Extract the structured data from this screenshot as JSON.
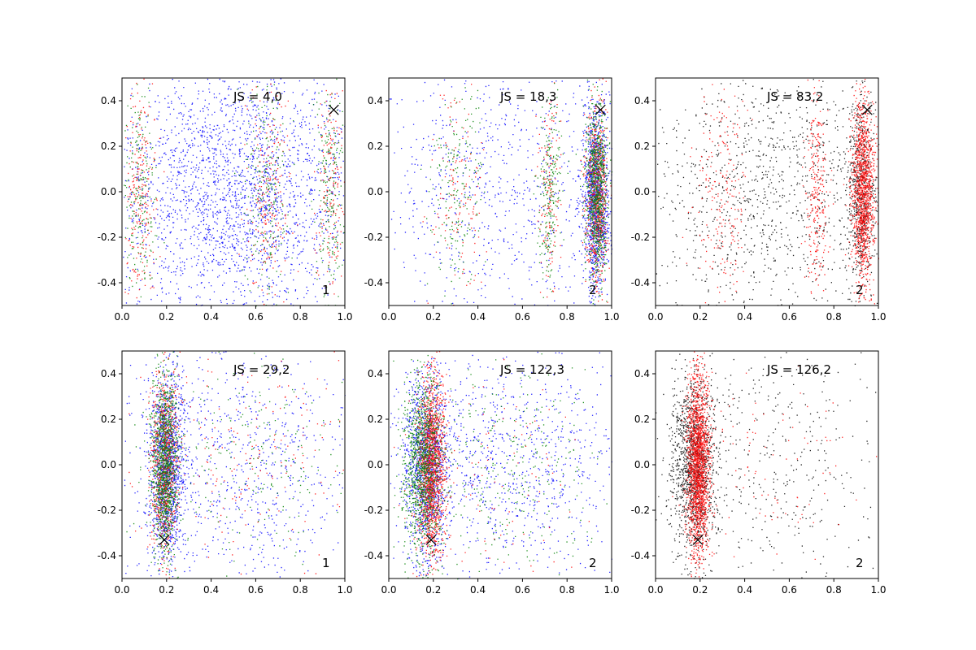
{
  "figure": {
    "background": "#ffffff"
  },
  "chart_data": [
    {
      "type": "scatter",
      "js_label": "JS = 4,0",
      "corner_label": "1",
      "xlim": [
        0.0,
        1.0
      ],
      "ylim": [
        -0.5,
        0.5
      ],
      "x_ticks": [
        "0.0",
        "0.2",
        "0.4",
        "0.6",
        "0.8",
        "1.0"
      ],
      "y_ticks": [
        "-0.4",
        "-0.2",
        "0.0",
        "0.2",
        "0.4"
      ],
      "marker": [
        0.95,
        0.36
      ],
      "series": [
        {
          "color": "#0000ff",
          "count": 2600,
          "clusters": [
            {
              "cx": 0.5,
              "cy": 0.0,
              "sx": 0.3,
              "sy": 0.3,
              "w": 1.0
            }
          ]
        },
        {
          "color": "#ff0000",
          "count": 650,
          "clusters": [
            {
              "cx": 0.08,
              "cy": 0.0,
              "sx": 0.035,
              "sy": 0.25,
              "w": 0.35
            },
            {
              "cx": 0.65,
              "cy": 0.0,
              "sx": 0.05,
              "sy": 0.25,
              "w": 0.35
            },
            {
              "cx": 0.93,
              "cy": 0.0,
              "sx": 0.03,
              "sy": 0.25,
              "w": 0.3
            }
          ]
        },
        {
          "color": "#008000",
          "count": 650,
          "clusters": [
            {
              "cx": 0.08,
              "cy": 0.0,
              "sx": 0.035,
              "sy": 0.25,
              "w": 0.35
            },
            {
              "cx": 0.65,
              "cy": 0.0,
              "sx": 0.05,
              "sy": 0.25,
              "w": 0.35
            },
            {
              "cx": 0.93,
              "cy": 0.0,
              "sx": 0.03,
              "sy": 0.25,
              "w": 0.3
            }
          ]
        }
      ]
    },
    {
      "type": "scatter",
      "js_label": "JS = 18,3",
      "corner_label": "2",
      "xlim": [
        0.0,
        1.0
      ],
      "ylim": [
        -0.5,
        0.5
      ],
      "x_ticks": [
        "0.0",
        "0.2",
        "0.4",
        "0.6",
        "0.8",
        "1.0"
      ],
      "y_ticks": [
        "-0.4",
        "-0.2",
        "0.0",
        "0.2",
        "0.4"
      ],
      "marker": [
        0.95,
        0.36
      ],
      "series": [
        {
          "color": "#0000ff",
          "count": 2000,
          "clusters": [
            {
              "cx": 0.93,
              "cy": 0.0,
              "sx": 0.03,
              "sy": 0.2,
              "w": 0.6
            },
            {
              "cx": 0.5,
              "cy": 0.0,
              "sx": 0.3,
              "sy": 0.3,
              "w": 0.4
            }
          ]
        },
        {
          "color": "#ff0000",
          "count": 1000,
          "clusters": [
            {
              "cx": 0.93,
              "cy": 0.0,
              "sx": 0.025,
              "sy": 0.2,
              "w": 0.7
            },
            {
              "cx": 0.72,
              "cy": 0.0,
              "sx": 0.025,
              "sy": 0.22,
              "w": 0.15
            },
            {
              "cx": 0.3,
              "cy": 0.0,
              "sx": 0.06,
              "sy": 0.25,
              "w": 0.15
            }
          ]
        },
        {
          "color": "#008000",
          "count": 1300,
          "clusters": [
            {
              "cx": 0.93,
              "cy": 0.0,
              "sx": 0.025,
              "sy": 0.2,
              "w": 0.65
            },
            {
              "cx": 0.72,
              "cy": 0.0,
              "sx": 0.025,
              "sy": 0.22,
              "w": 0.2
            },
            {
              "cx": 0.3,
              "cy": 0.0,
              "sx": 0.06,
              "sy": 0.25,
              "w": 0.15
            }
          ]
        }
      ]
    },
    {
      "type": "scatter",
      "js_label": "JS = 83,2",
      "corner_label": "2",
      "xlim": [
        0.0,
        1.0
      ],
      "ylim": [
        -0.5,
        0.5
      ],
      "x_ticks": [
        "0.0",
        "0.2",
        "0.4",
        "0.6",
        "0.8",
        "1.0"
      ],
      "y_ticks": [
        "-0.4",
        "-0.2",
        "0.0",
        "0.2",
        "0.4"
      ],
      "marker": [
        0.95,
        0.36
      ],
      "series": [
        {
          "color": "#000000",
          "count": 1800,
          "clusters": [
            {
              "cx": 0.5,
              "cy": 0.0,
              "sx": 0.3,
              "sy": 0.28,
              "w": 0.65
            },
            {
              "cx": 0.92,
              "cy": 0.0,
              "sx": 0.03,
              "sy": 0.22,
              "w": 0.35
            }
          ]
        },
        {
          "color": "#ff0000",
          "count": 1800,
          "clusters": [
            {
              "cx": 0.93,
              "cy": 0.0,
              "sx": 0.025,
              "sy": 0.2,
              "w": 0.75
            },
            {
              "cx": 0.72,
              "cy": 0.0,
              "sx": 0.025,
              "sy": 0.22,
              "w": 0.15
            },
            {
              "cx": 0.3,
              "cy": 0.0,
              "sx": 0.06,
              "sy": 0.25,
              "w": 0.1
            }
          ]
        }
      ]
    },
    {
      "type": "scatter",
      "js_label": "JS = 29,2",
      "corner_label": "1",
      "xlim": [
        0.0,
        1.0
      ],
      "ylim": [
        -0.5,
        0.5
      ],
      "x_ticks": [
        "0.0",
        "0.2",
        "0.4",
        "0.6",
        "0.8",
        "1.0"
      ],
      "y_ticks": [
        "-0.4",
        "-0.2",
        "0.0",
        "0.2",
        "0.4"
      ],
      "marker": [
        0.19,
        -0.33
      ],
      "series": [
        {
          "color": "#0000ff",
          "count": 2200,
          "clusters": [
            {
              "cx": 0.2,
              "cy": 0.0,
              "sx": 0.04,
              "sy": 0.2,
              "w": 0.6
            },
            {
              "cx": 0.5,
              "cy": 0.0,
              "sx": 0.3,
              "sy": 0.3,
              "w": 0.4
            }
          ]
        },
        {
          "color": "#ff0000",
          "count": 1000,
          "clusters": [
            {
              "cx": 0.19,
              "cy": 0.0,
              "sx": 0.03,
              "sy": 0.2,
              "w": 0.8
            },
            {
              "cx": 0.55,
              "cy": 0.0,
              "sx": 0.25,
              "sy": 0.25,
              "w": 0.2
            }
          ]
        },
        {
          "color": "#008000",
          "count": 1400,
          "clusters": [
            {
              "cx": 0.19,
              "cy": 0.0,
              "sx": 0.03,
              "sy": 0.2,
              "w": 0.8
            },
            {
              "cx": 0.55,
              "cy": 0.0,
              "sx": 0.25,
              "sy": 0.25,
              "w": 0.2
            }
          ]
        }
      ]
    },
    {
      "type": "scatter",
      "js_label": "JS = 122,3",
      "corner_label": "2",
      "xlim": [
        0.0,
        1.0
      ],
      "ylim": [
        -0.5,
        0.5
      ],
      "x_ticks": [
        "0.0",
        "0.2",
        "0.4",
        "0.6",
        "0.8",
        "1.0"
      ],
      "y_ticks": [
        "-0.4",
        "-0.2",
        "0.0",
        "0.2",
        "0.4"
      ],
      "marker": [
        0.19,
        -0.33
      ],
      "series": [
        {
          "color": "#0000ff",
          "count": 2200,
          "clusters": [
            {
              "cx": 0.17,
              "cy": 0.0,
              "sx": 0.05,
              "sy": 0.2,
              "w": 0.55
            },
            {
              "cx": 0.55,
              "cy": 0.0,
              "sx": 0.28,
              "sy": 0.3,
              "w": 0.45
            }
          ]
        },
        {
          "color": "#ff0000",
          "count": 1700,
          "clusters": [
            {
              "cx": 0.19,
              "cy": 0.0,
              "sx": 0.03,
              "sy": 0.2,
              "w": 0.92
            },
            {
              "cx": 0.5,
              "cy": 0.0,
              "sx": 0.25,
              "sy": 0.25,
              "w": 0.08
            }
          ]
        },
        {
          "color": "#008000",
          "count": 1500,
          "clusters": [
            {
              "cx": 0.15,
              "cy": 0.0,
              "sx": 0.04,
              "sy": 0.2,
              "w": 0.75
            },
            {
              "cx": 0.5,
              "cy": 0.0,
              "sx": 0.25,
              "sy": 0.25,
              "w": 0.25
            }
          ]
        }
      ]
    },
    {
      "type": "scatter",
      "js_label": "JS = 126,2",
      "corner_label": "2",
      "xlim": [
        0.0,
        1.0
      ],
      "ylim": [
        -0.5,
        0.5
      ],
      "x_ticks": [
        "0.0",
        "0.2",
        "0.4",
        "0.6",
        "0.8",
        "1.0"
      ],
      "y_ticks": [
        "-0.4",
        "-0.2",
        "0.0",
        "0.2",
        "0.4"
      ],
      "marker": [
        0.19,
        -0.33
      ],
      "series": [
        {
          "color": "#000000",
          "count": 1800,
          "clusters": [
            {
              "cx": 0.17,
              "cy": 0.0,
              "sx": 0.05,
              "sy": 0.2,
              "w": 0.75
            },
            {
              "cx": 0.55,
              "cy": 0.0,
              "sx": 0.28,
              "sy": 0.3,
              "w": 0.25
            }
          ]
        },
        {
          "color": "#ff0000",
          "count": 2000,
          "clusters": [
            {
              "cx": 0.19,
              "cy": 0.0,
              "sx": 0.025,
              "sy": 0.2,
              "w": 0.95
            },
            {
              "cx": 0.5,
              "cy": 0.0,
              "sx": 0.25,
              "sy": 0.25,
              "w": 0.05
            }
          ]
        }
      ]
    }
  ]
}
